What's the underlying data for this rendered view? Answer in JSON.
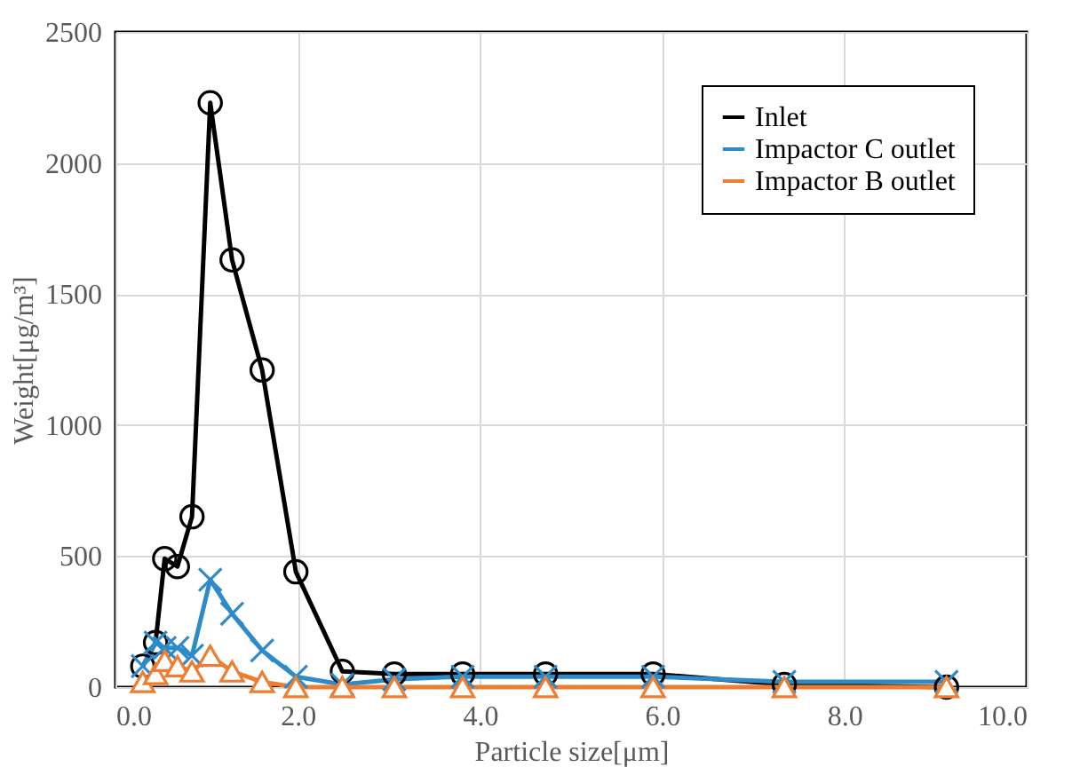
{
  "chart_data": {
    "type": "line",
    "xlabel": "Particle size[μm]",
    "ylabel": "Weight[μg/m³]",
    "x": [
      0.3,
      0.44,
      0.54,
      0.68,
      0.84,
      1.04,
      1.28,
      1.61,
      1.98,
      2.49,
      3.06,
      3.81,
      4.72,
      5.9,
      7.34,
      9.12
    ],
    "series": [
      {
        "name": "Inlet",
        "color": "#000000",
        "marker": "circle",
        "values": [
          80,
          170,
          490,
          460,
          650,
          2230,
          1630,
          1210,
          440,
          60,
          50,
          50,
          50,
          50,
          10,
          0
        ]
      },
      {
        "name": "Impactor C outlet",
        "color": "#2e8bc9",
        "marker": "cross",
        "values": [
          80,
          170,
          150,
          150,
          120,
          410,
          280,
          140,
          40,
          10,
          30,
          40,
          40,
          40,
          20,
          20
        ]
      },
      {
        "name": "Impactor B outlet",
        "color": "#ed7d31",
        "marker": "triangle",
        "values": [
          20,
          50,
          100,
          80,
          60,
          120,
          60,
          20,
          0,
          0,
          0,
          0,
          0,
          0,
          0,
          0
        ]
      }
    ],
    "xlim": [
      0,
      10
    ],
    "xticks": [
      {
        "value": 0,
        "label": "0.0"
      },
      {
        "value": 2,
        "label": "2.0"
      },
      {
        "value": 4,
        "label": "4.0"
      },
      {
        "value": 6,
        "label": "6.0"
      },
      {
        "value": 8,
        "label": "8.0"
      },
      {
        "value": 10,
        "label": "10.0"
      }
    ],
    "ylim": [
      0,
      2500
    ],
    "yticks": [
      0,
      500,
      1000,
      1500,
      2000,
      2500
    ],
    "grid": true,
    "legend": "top right",
    "line_style": "solid"
  }
}
